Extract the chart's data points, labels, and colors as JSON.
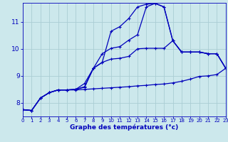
{
  "xlabel": "Graphe des températures (°c)",
  "background_color": "#cce8ec",
  "grid_color": "#aacdd4",
  "line_color": "#0000bb",
  "xlim": [
    0,
    23
  ],
  "ylim": [
    7.5,
    11.7
  ],
  "yticks": [
    8,
    9,
    10,
    11
  ],
  "xticks": [
    0,
    1,
    2,
    3,
    4,
    5,
    6,
    7,
    8,
    9,
    10,
    11,
    12,
    13,
    14,
    15,
    16,
    17,
    18,
    19,
    20,
    21,
    22,
    23
  ],
  "series": [
    {
      "x": [
        0,
        1,
        2,
        3,
        4,
        5,
        6,
        7,
        8,
        9,
        10,
        11,
        12,
        13,
        14,
        15,
        16,
        17,
        18,
        19,
        20,
        21,
        22,
        23
      ],
      "y": [
        7.75,
        7.72,
        8.18,
        8.38,
        8.48,
        8.48,
        8.48,
        8.5,
        8.52,
        8.54,
        8.56,
        8.58,
        8.6,
        8.63,
        8.65,
        8.68,
        8.7,
        8.74,
        8.8,
        8.88,
        8.98,
        9.0,
        9.05,
        9.28
      ]
    },
    {
      "x": [
        0,
        1,
        2,
        3,
        4,
        5,
        6,
        7,
        8,
        9,
        10,
        11,
        12,
        13,
        14,
        15,
        16,
        17,
        18,
        19,
        20,
        21,
        22,
        23
      ],
      "y": [
        7.75,
        7.72,
        8.18,
        8.38,
        8.48,
        8.48,
        8.5,
        8.6,
        9.28,
        9.5,
        9.62,
        9.65,
        9.72,
        10.0,
        10.02,
        10.02,
        10.02,
        10.3,
        9.88,
        9.88,
        9.88,
        9.82,
        9.82,
        9.28
      ]
    },
    {
      "x": [
        0,
        1,
        2,
        3,
        4,
        5,
        6,
        7,
        8,
        9,
        10,
        11,
        12,
        13,
        14,
        15,
        16,
        17,
        18,
        19,
        20,
        21,
        22,
        23
      ],
      "y": [
        7.75,
        7.72,
        8.18,
        8.38,
        8.48,
        8.48,
        8.5,
        8.72,
        9.28,
        9.82,
        10.02,
        10.08,
        10.32,
        10.52,
        11.55,
        11.68,
        11.55,
        10.3,
        9.88,
        9.88,
        9.88,
        9.82,
        9.82,
        9.28
      ]
    },
    {
      "x": [
        0,
        1,
        2,
        3,
        4,
        5,
        6,
        7,
        8,
        9,
        10,
        11,
        12,
        13,
        14,
        15,
        16,
        17,
        18,
        19,
        20,
        21,
        22,
        23
      ],
      "y": [
        7.75,
        7.72,
        8.18,
        8.38,
        8.48,
        8.48,
        8.5,
        8.58,
        9.28,
        9.5,
        10.65,
        10.82,
        11.12,
        11.55,
        11.65,
        11.68,
        11.55,
        10.3,
        9.88,
        9.88,
        9.88,
        9.82,
        9.82,
        9.28
      ]
    }
  ]
}
